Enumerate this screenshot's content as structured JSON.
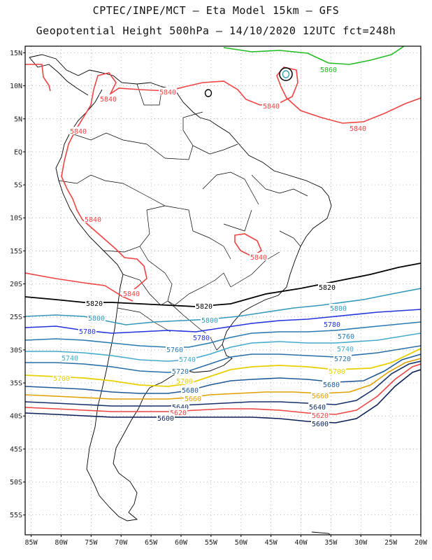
{
  "header": {
    "line1": "CPTEC/INPE/MCT –  Eta Model 15km – GFS",
    "line2": "Geopotential Height 500hPa – 14/10/2020 12UTC fct=248h"
  },
  "map": {
    "region": "South America",
    "lon_range": [
      -86,
      -20
    ],
    "lat_range": [
      -58,
      16
    ],
    "lat_ticks": [
      "15N",
      "10N",
      "5N",
      "EQ",
      "5S",
      "10S",
      "15S",
      "20S",
      "25S",
      "30S",
      "35S",
      "40S",
      "45S",
      "50S",
      "55S"
    ],
    "lon_ticks": [
      "85W",
      "80W",
      "75W",
      "70W",
      "65W",
      "60W",
      "55W",
      "50W",
      "45W",
      "40W",
      "35W",
      "30W",
      "25W",
      "20W"
    ]
  },
  "contour_labels": [
    {
      "text": "5860",
      "color": "#22bb22"
    },
    {
      "text": "5840",
      "color": "#ee4444"
    },
    {
      "text": "5840",
      "color": "#ee4444"
    },
    {
      "text": "5840",
      "color": "#ee4444"
    },
    {
      "text": "5840",
      "color": "#ee4444"
    },
    {
      "text": "5840",
      "color": "#ee4444"
    },
    {
      "text": "5840",
      "color": "#ee4444"
    },
    {
      "text": "5840",
      "color": "#ee4444"
    },
    {
      "text": "5840",
      "color": "#ee4444"
    },
    {
      "text": "5820",
      "color": "#000000"
    },
    {
      "text": "5820",
      "color": "#000000"
    },
    {
      "text": "5820",
      "color": "#000000"
    },
    {
      "text": "5800",
      "color": "#3399bb"
    },
    {
      "text": "5800",
      "color": "#3399bb"
    },
    {
      "text": "5800",
      "color": "#3399bb"
    },
    {
      "text": "5780",
      "color": "#2233dd"
    },
    {
      "text": "5780",
      "color": "#2233dd"
    },
    {
      "text": "5780",
      "color": "#2233dd"
    },
    {
      "text": "5760",
      "color": "#2a7ab0"
    },
    {
      "text": "5760",
      "color": "#2a7ab0"
    },
    {
      "text": "5740",
      "color": "#44aacc"
    },
    {
      "text": "5740",
      "color": "#44aacc"
    },
    {
      "text": "5740",
      "color": "#44aacc"
    },
    {
      "text": "5720",
      "color": "#2a6fa8"
    },
    {
      "text": "5720",
      "color": "#2a6fa8"
    },
    {
      "text": "5700",
      "color": "#e8d000"
    },
    {
      "text": "5700",
      "color": "#e8d000"
    },
    {
      "text": "5700",
      "color": "#e8d000"
    },
    {
      "text": "5680",
      "color": "#1f5a99"
    },
    {
      "text": "5680",
      "color": "#1f5a99"
    },
    {
      "text": "5660",
      "color": "#e0a000"
    },
    {
      "text": "5660",
      "color": "#e0a000"
    },
    {
      "text": "5640",
      "color": "#15306a"
    },
    {
      "text": "5640",
      "color": "#15306a"
    },
    {
      "text": "5620",
      "color": "#ee4444"
    },
    {
      "text": "5620",
      "color": "#ee4444"
    },
    {
      "text": "5600",
      "color": "#0a1f55"
    },
    {
      "text": "5600",
      "color": "#0a1f55"
    }
  ]
}
